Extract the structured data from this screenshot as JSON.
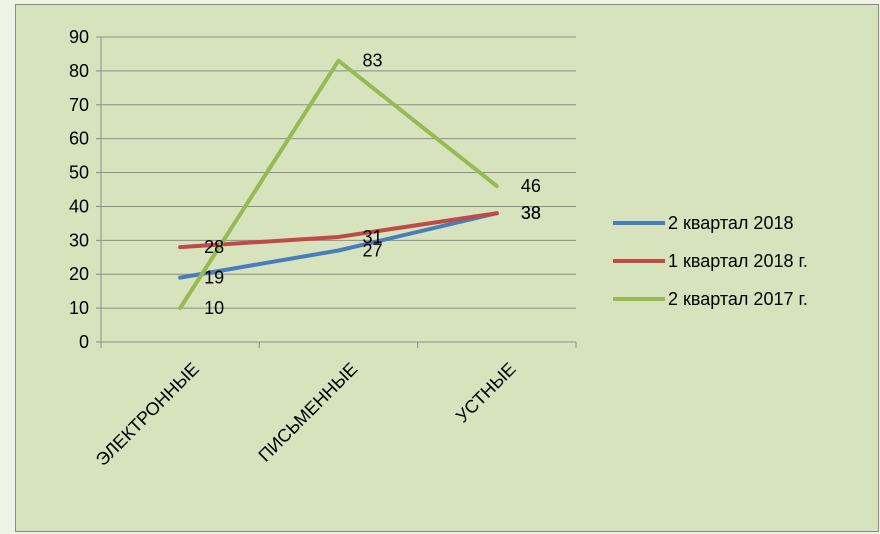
{
  "chart_data": {
    "type": "line",
    "categories": [
      "ЭЛЕКТРОННЫЕ",
      "ПИСЬМЕННЫЕ",
      "УСТНЫЕ"
    ],
    "series": [
      {
        "name": "2 квартал 2018",
        "values": [
          19,
          27,
          38
        ],
        "color": "#4a7ebb"
      },
      {
        "name": "1 квартал 2018 г.",
        "values": [
          28,
          31,
          38
        ],
        "color": "#be4b48"
      },
      {
        "name": "2 квартал 2017 г.",
        "values": [
          10,
          83,
          46
        ],
        "color": "#98b954"
      }
    ],
    "ylim": [
      0,
      90
    ],
    "yticks": [
      0,
      10,
      20,
      30,
      40,
      50,
      60,
      70,
      80,
      90
    ],
    "grid": true,
    "legend": "right"
  }
}
